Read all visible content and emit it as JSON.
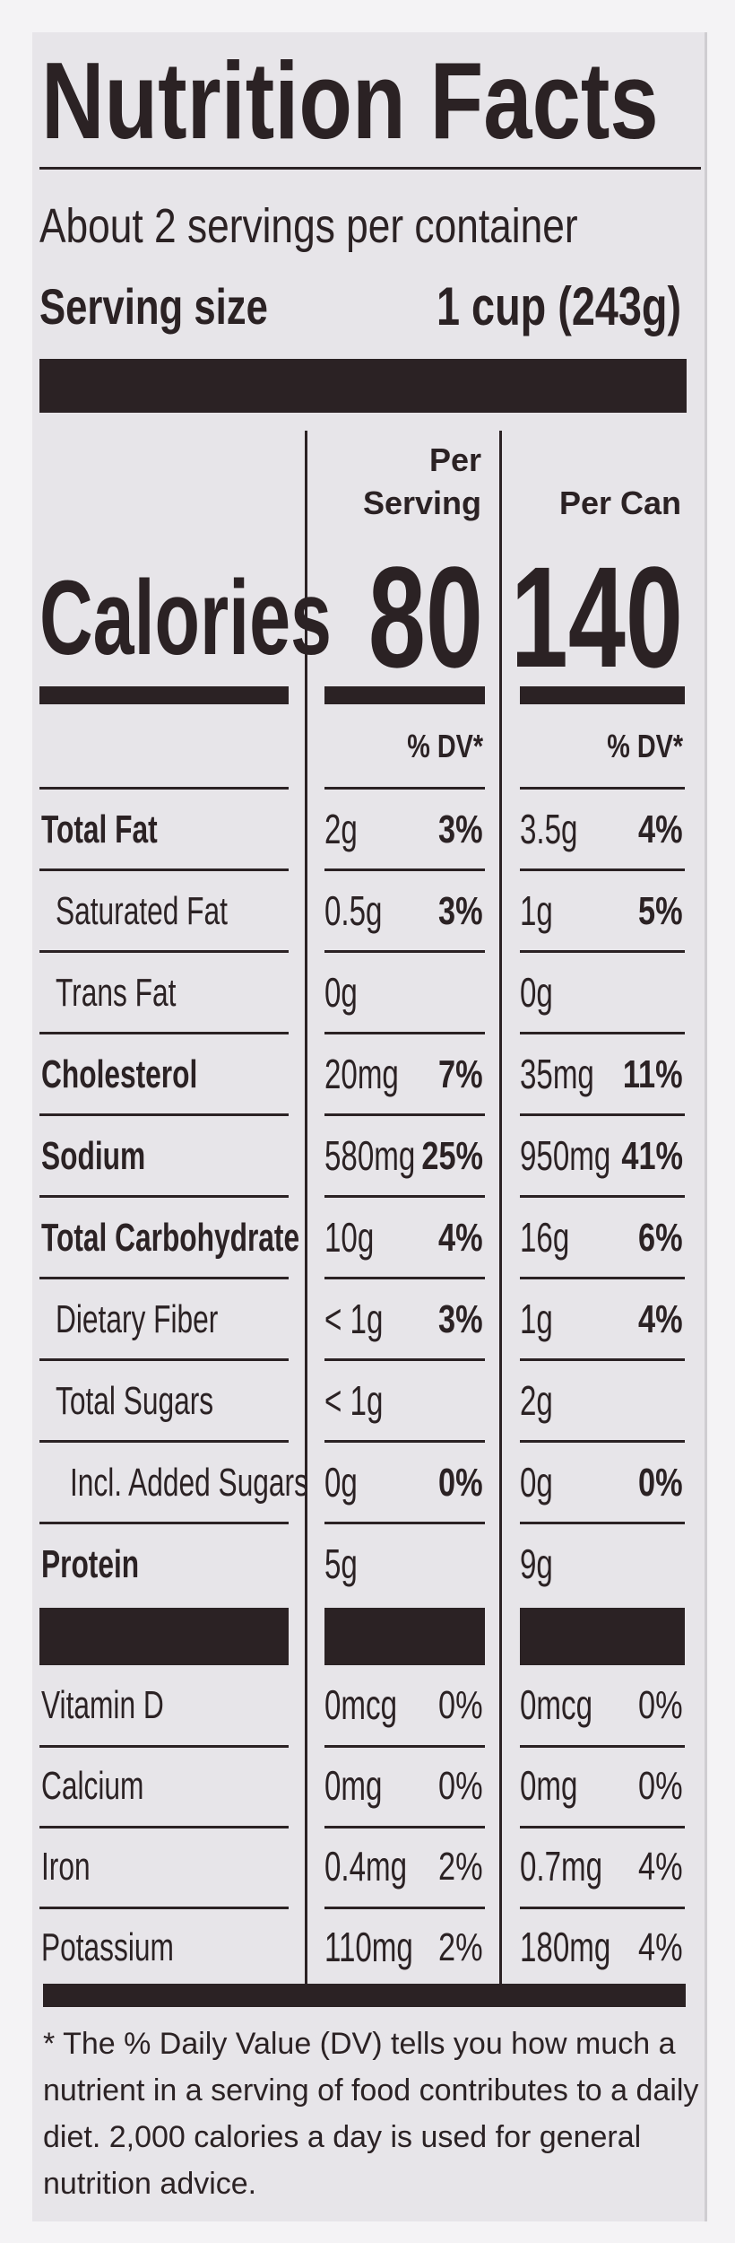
{
  "header": {
    "title": "Nutrition Facts",
    "servings": "About 2 servings per container",
    "serving_size_label": "Serving size",
    "serving_size_value": "1 cup (243g)"
  },
  "calories_label": "Calories",
  "columns": [
    {
      "heading": "Per Serving",
      "calories": "80",
      "dv_heading": "% DV*"
    },
    {
      "heading": "Per Can",
      "calories": "140",
      "dv_heading": "% DV*"
    }
  ],
  "nutrients": [
    {
      "name": "Total Fat",
      "amounts": [
        "2g",
        "3.5g"
      ],
      "dv": [
        "3%",
        "4%"
      ]
    },
    {
      "name": "Saturated Fat",
      "amounts": [
        "0.5g",
        "1g"
      ],
      "dv": [
        "3%",
        "5%"
      ]
    },
    {
      "name": "Trans Fat",
      "amounts": [
        "0g",
        "0g"
      ],
      "dv": [
        null,
        null
      ]
    },
    {
      "name": "Cholesterol",
      "amounts": [
        "20mg",
        "35mg"
      ],
      "dv": [
        "7%",
        "11%"
      ]
    },
    {
      "name": "Sodium",
      "amounts": [
        "580mg",
        "950mg"
      ],
      "dv": [
        "25%",
        "41%"
      ]
    },
    {
      "name": "Total Carbohydrate",
      "amounts": [
        "10g",
        "16g"
      ],
      "dv": [
        "4%",
        "6%"
      ]
    },
    {
      "name": "Dietary Fiber",
      "amounts": [
        "< 1g",
        "1g"
      ],
      "dv": [
        "3%",
        "4%"
      ]
    },
    {
      "name": "Total Sugars",
      "amounts": [
        "< 1g",
        "2g"
      ],
      "dv": [
        null,
        null
      ]
    },
    {
      "name": "Incl. Added Sugars",
      "amounts": [
        "0g",
        "0g"
      ],
      "dv": [
        "0%",
        "0%"
      ]
    },
    {
      "name": "Protein",
      "amounts": [
        "5g",
        "9g"
      ],
      "dv": [
        null,
        null
      ]
    }
  ],
  "vitamins": [
    {
      "name": "Vitamin D",
      "amounts": [
        "0mcg",
        "0mcg"
      ],
      "dv": [
        "0%",
        "0%"
      ]
    },
    {
      "name": "Calcium",
      "amounts": [
        "0mg",
        "0mg"
      ],
      "dv": [
        "0%",
        "0%"
      ]
    },
    {
      "name": "Iron",
      "amounts": [
        "0.4mg",
        "0.7mg"
      ],
      "dv": [
        "2%",
        "4%"
      ]
    },
    {
      "name": "Potassium",
      "amounts": [
        "110mg",
        "180mg"
      ],
      "dv": [
        "2%",
        "4%"
      ]
    }
  ],
  "footnote": "* The % Daily Value (DV) tells you how much a nutrient in a serving of food contributes to a daily diet. 2,000 calories a day is used for general nutrition advice."
}
